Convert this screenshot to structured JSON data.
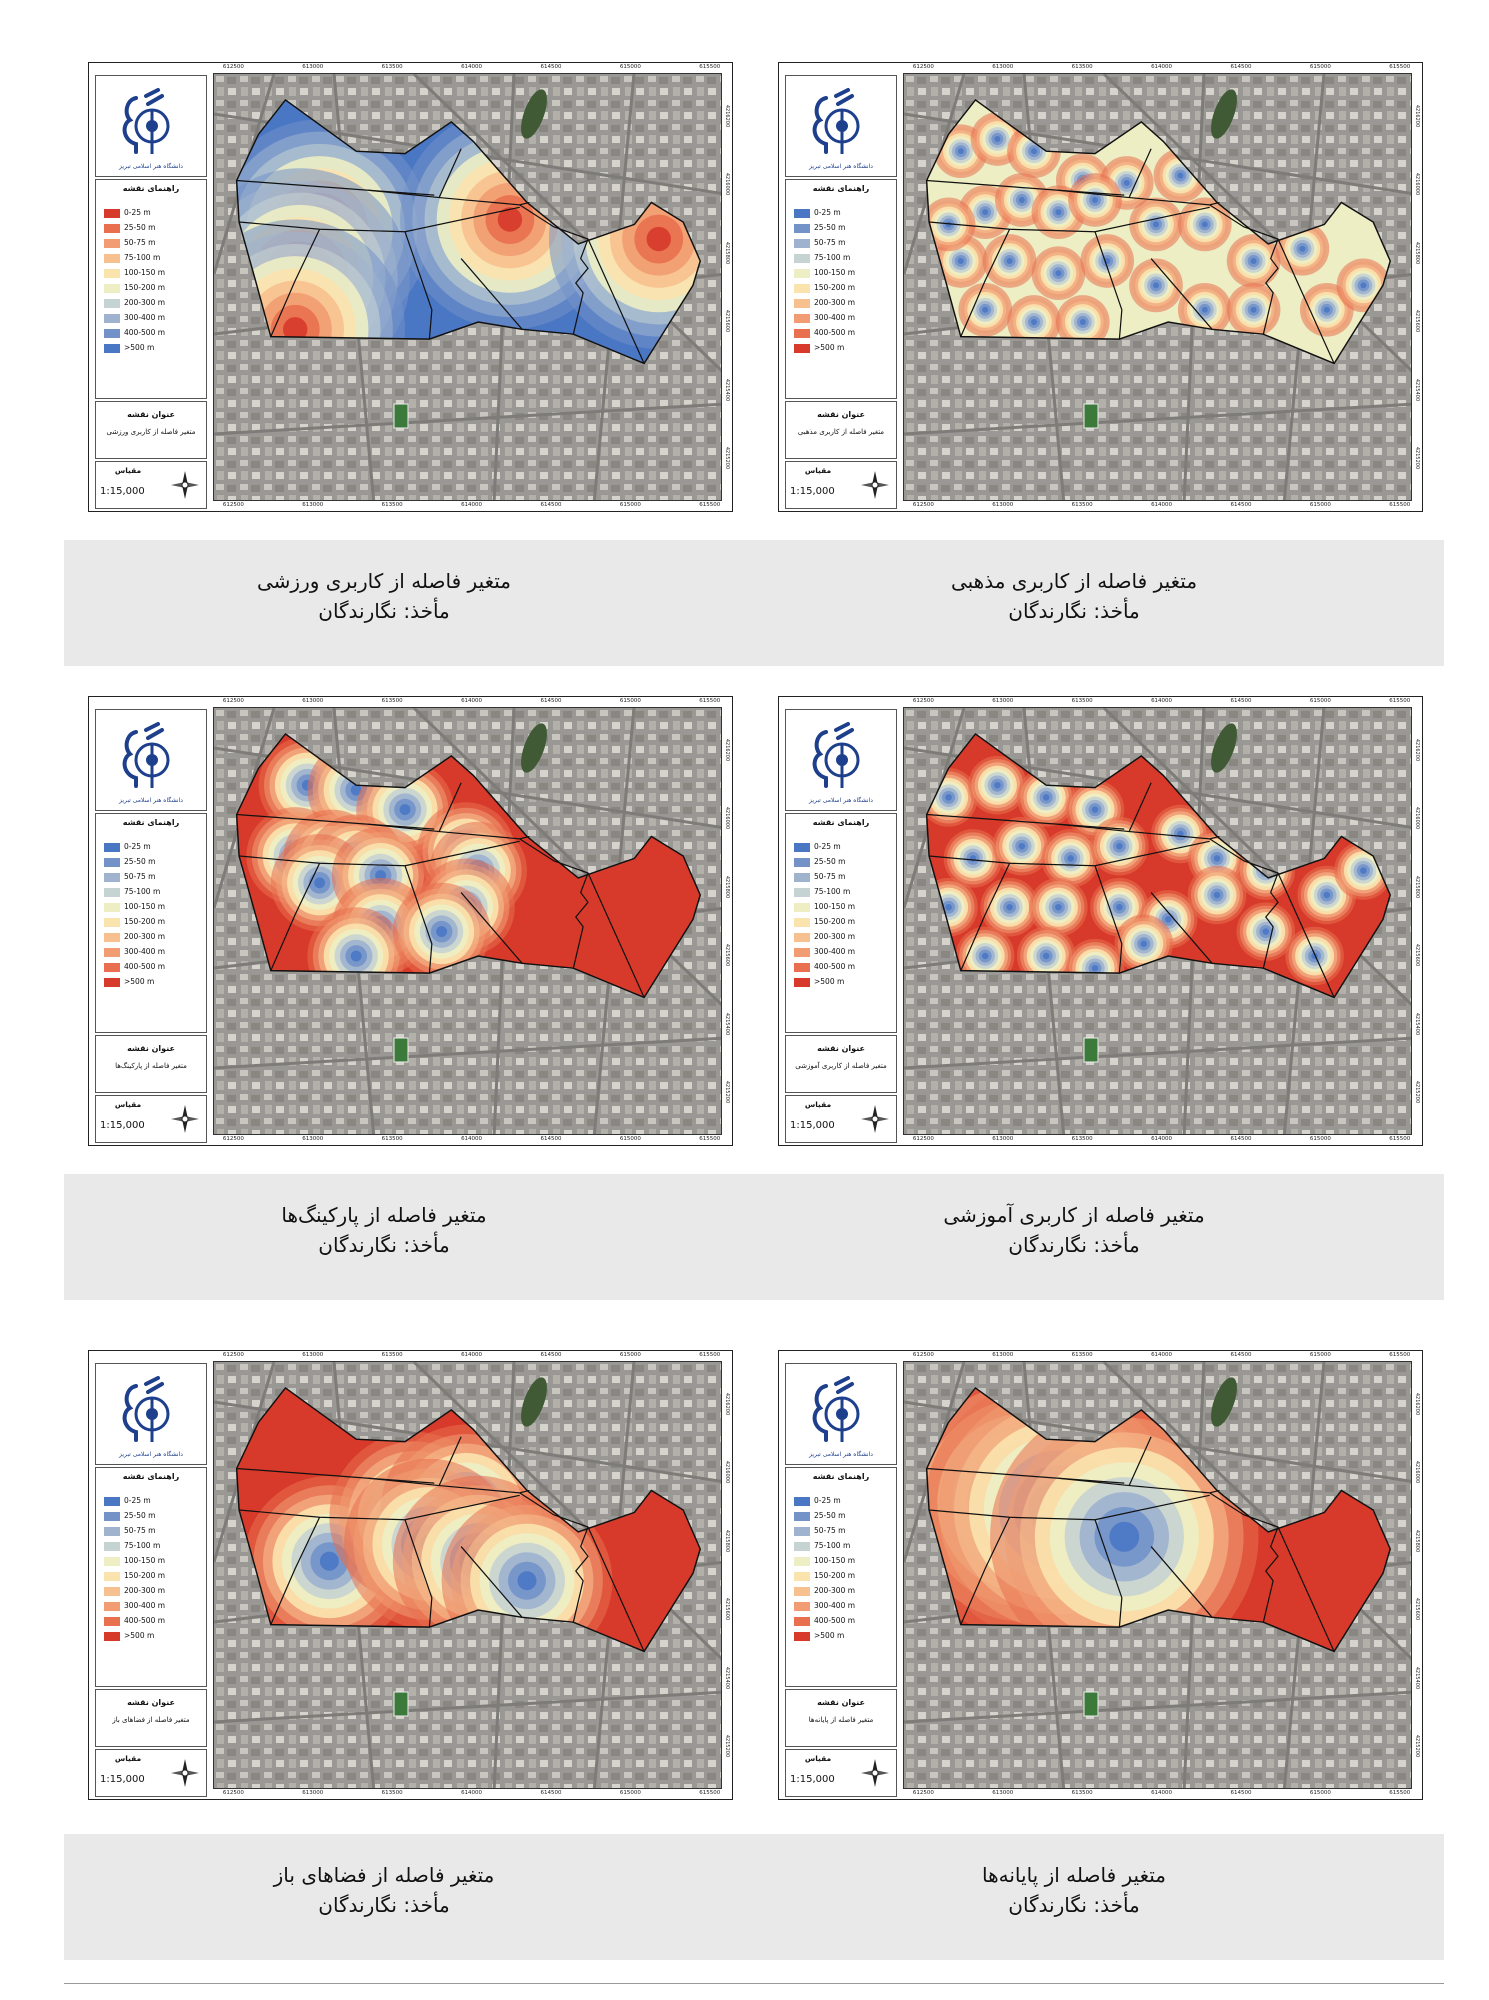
{
  "maps": [
    {
      "id": "sports",
      "title": "متغیر فاصله از کاربری ورزشی",
      "map_title": "متغیر فاصله از کاربری ورزشی",
      "theme": "sport"
    },
    {
      "id": "religious",
      "title": "متغیر فاصله از کاربری مذهبی",
      "map_title": "متغیر فاصله از کاربری مذهبی",
      "theme": "religious"
    },
    {
      "id": "parking",
      "title": "متغیر فاصله از پارکینگ‌ها",
      "map_title": "متغیر فاصله از پارکینگ‌ها",
      "theme": "parking"
    },
    {
      "id": "education",
      "title": "متغیر فاصله از کاربری آموزشی",
      "map_title": "متغیر فاصله از کاربری آموزشی",
      "theme": "education"
    },
    {
      "id": "openspace",
      "title": "متغیر فاصله از فضاهای باز",
      "map_title": "متغیر فاصله از فضاهای باز",
      "theme": "openspace"
    },
    {
      "id": "terminals",
      "title": "متغیر فاصله از پایانه‌ها",
      "map_title": "متغیر فاصله از پایانه‌ها",
      "theme": "terminal"
    }
  ],
  "source_label": "مأخذ: نگارندگان",
  "legend_heading": "راهنمای نقشه",
  "map_title_heading": "عنوان نقشه",
  "scale_heading": "مقیاس",
  "scale_value": "1:15,000",
  "logo_text": "دانشگاه هنر اسلامی تبریز",
  "legend_classes": [
    {
      "label": "0-25 m",
      "color": "#4a77c4"
    },
    {
      "label": "25-50 m",
      "color": "#7292c8"
    },
    {
      "label": "50-75 m",
      "color": "#9fb3cf"
    },
    {
      "label": "75-100 m",
      "color": "#c6d3d3"
    },
    {
      "label": "100-150 m",
      "color": "#edeec4"
    },
    {
      "label": "150-200 m",
      "color": "#fbe3ae"
    },
    {
      "label": "200-300 m",
      "color": "#f7c18f"
    },
    {
      "label": "300-400 m",
      "color": "#f19c72"
    },
    {
      "label": "400-500 m",
      "color": "#e8704f"
    },
    {
      "label": ">500 m",
      "color": "#d73a2a"
    }
  ],
  "legend_classes_sport": [
    {
      "label": "0-25 m",
      "color": "#d73a2a"
    },
    {
      "label": "25-50 m",
      "color": "#e8704f"
    },
    {
      "label": "50-75 m",
      "color": "#f19c72"
    },
    {
      "label": "75-100 m",
      "color": "#f7c18f"
    },
    {
      "label": "100-150 m",
      "color": "#fbe3ae"
    },
    {
      "label": "150-200 m",
      "color": "#edeec4"
    },
    {
      "label": "200-300 m",
      "color": "#c6d3d3"
    },
    {
      "label": "300-400 m",
      "color": "#9fb3cf"
    },
    {
      "label": "400-500 m",
      "color": "#7292c8"
    },
    {
      "label": ">500 m",
      "color": "#4a77c4"
    }
  ],
  "coords_x": [
    "612500",
    "613000",
    "613500",
    "614000",
    "614500",
    "615000",
    "615500"
  ],
  "coords_y": [
    "4216200",
    "4216000",
    "4215800",
    "4215600",
    "4215400",
    "4215200"
  ]
}
